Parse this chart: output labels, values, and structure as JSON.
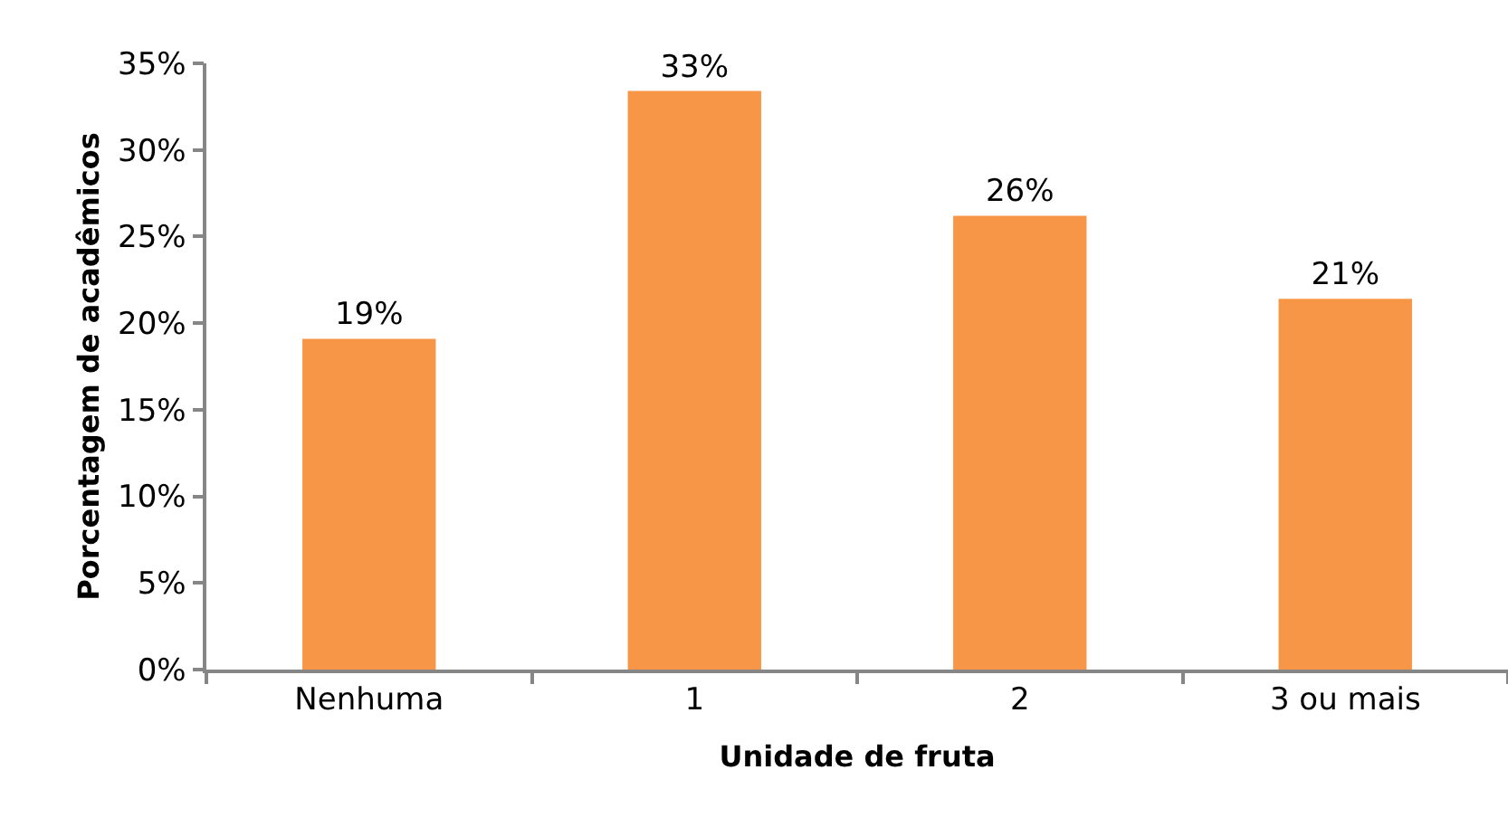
{
  "chart_data": {
    "type": "bar",
    "xlabel": "Unidade de fruta",
    "ylabel": "Porcentagem de acadêmicos",
    "categories": [
      "Nenhuma",
      "1",
      "2",
      "3 ou mais"
    ],
    "values": [
      19.1,
      33.4,
      26.2,
      21.4
    ],
    "color": "#f79646",
    "value_labels": [
      "19%",
      "33%",
      "26%",
      "21%"
    ],
    "ylim": [
      0,
      35
    ],
    "yticks": [
      {
        "value": 0,
        "label": "0%"
      },
      {
        "value": 5,
        "label": "5%"
      },
      {
        "value": 10,
        "label": "10%"
      },
      {
        "value": 15,
        "label": "15%"
      },
      {
        "value": 20,
        "label": "20%"
      },
      {
        "value": 25,
        "label": "25%"
      },
      {
        "value": 30,
        "label": "30%"
      },
      {
        "value": 35,
        "label": "35%"
      }
    ]
  }
}
